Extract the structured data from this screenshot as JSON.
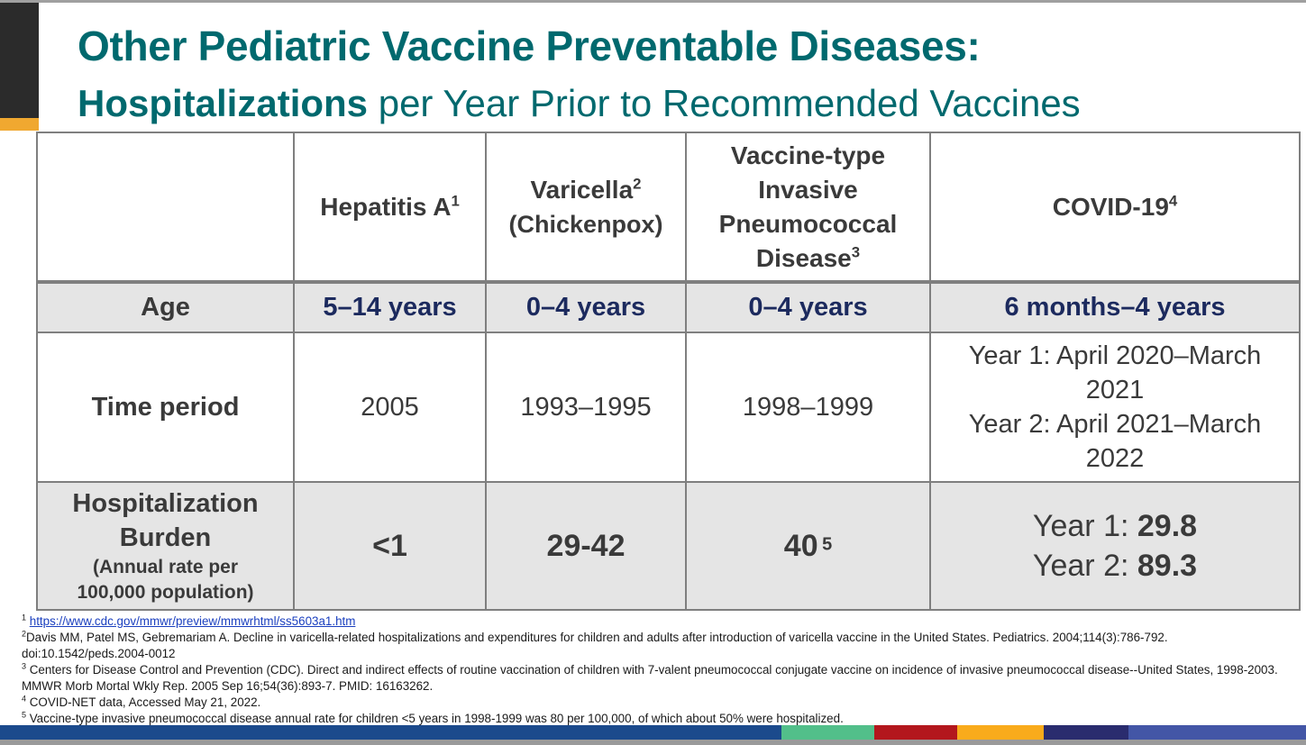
{
  "title": "Other Pediatric Vaccine Preventable Diseases:",
  "subtitle": {
    "bold": "Hospitalizations",
    "rest": " per Year Prior to Recommended Vaccines"
  },
  "table": {
    "columns": [
      {
        "name": "Hepatitis A",
        "ref": "1"
      },
      {
        "name": "Varicella",
        "ref": "2",
        "sub": "(Chickenpox)"
      },
      {
        "lines": [
          "Vaccine-type",
          "Invasive",
          "Pneumococcal",
          "Disease"
        ],
        "ref": "3"
      },
      {
        "name": "COVID-19",
        "ref": "4"
      }
    ],
    "age": {
      "label": "Age",
      "values": [
        "5–14 years",
        "0–4 years",
        "0–4 years",
        "6 months–4 years"
      ]
    },
    "time_period": {
      "label": "Time period",
      "values": [
        "2005",
        "1993–1995",
        "1998–1999"
      ],
      "covid_lines": [
        "Year 1: April 2020–March",
        "2021",
        "Year 2: April 2021–March",
        "2022"
      ]
    },
    "burden": {
      "label_main": [
        "Hospitalization",
        "Burden"
      ],
      "label_sub": [
        "(Annual rate per",
        "100,000 population)"
      ],
      "values": [
        "<1",
        "29-42",
        "40"
      ],
      "ipd_ref": "5",
      "covid": [
        {
          "prefix": "Year 1: ",
          "value": "29.8"
        },
        {
          "prefix": "Year 2: ",
          "value": "89.3"
        }
      ]
    }
  },
  "footnotes": [
    {
      "num": "1",
      "text": "https://www.cdc.gov/mmwr/preview/mmwrhtml/ss5603a1.htm"
    },
    {
      "num": "2",
      "text": "Davis MM, Patel MS, Gebremariam A. Decline in varicella-related hospitalizations and expenditures for children and adults after introduction of varicella vaccine in the United States. Pediatrics. 2004;114(3):786-792. doi:10.1542/peds.2004-0012"
    },
    {
      "num": "3",
      "text": " Centers for Disease Control and Prevention (CDC). Direct and indirect effects of routine vaccination of children with 7-valent pneumococcal conjugate vaccine on incidence of invasive pneumococcal disease--United States, 1998-2003. MMWR Morb Mortal Wkly Rep. 2005 Sep 16;54(36):893-7. PMID: 16163262."
    },
    {
      "num": "4",
      "text": " COVID-NET data, Accessed May 21, 2022."
    },
    {
      "num": "5",
      "text": " Vaccine-type invasive pneumococcal disease annual rate for children <5 years in 1998-1999 was 80 per 100,000, of which about 50% were hospitalized."
    }
  ],
  "colors": {
    "title": "#00696e",
    "age_values": "#1c2a5e",
    "bar_segments": [
      "#1b4a8c",
      "#52bf8a",
      "#b3171d",
      "#f9ab1b",
      "#2a2c6e",
      "#4356a6"
    ]
  }
}
